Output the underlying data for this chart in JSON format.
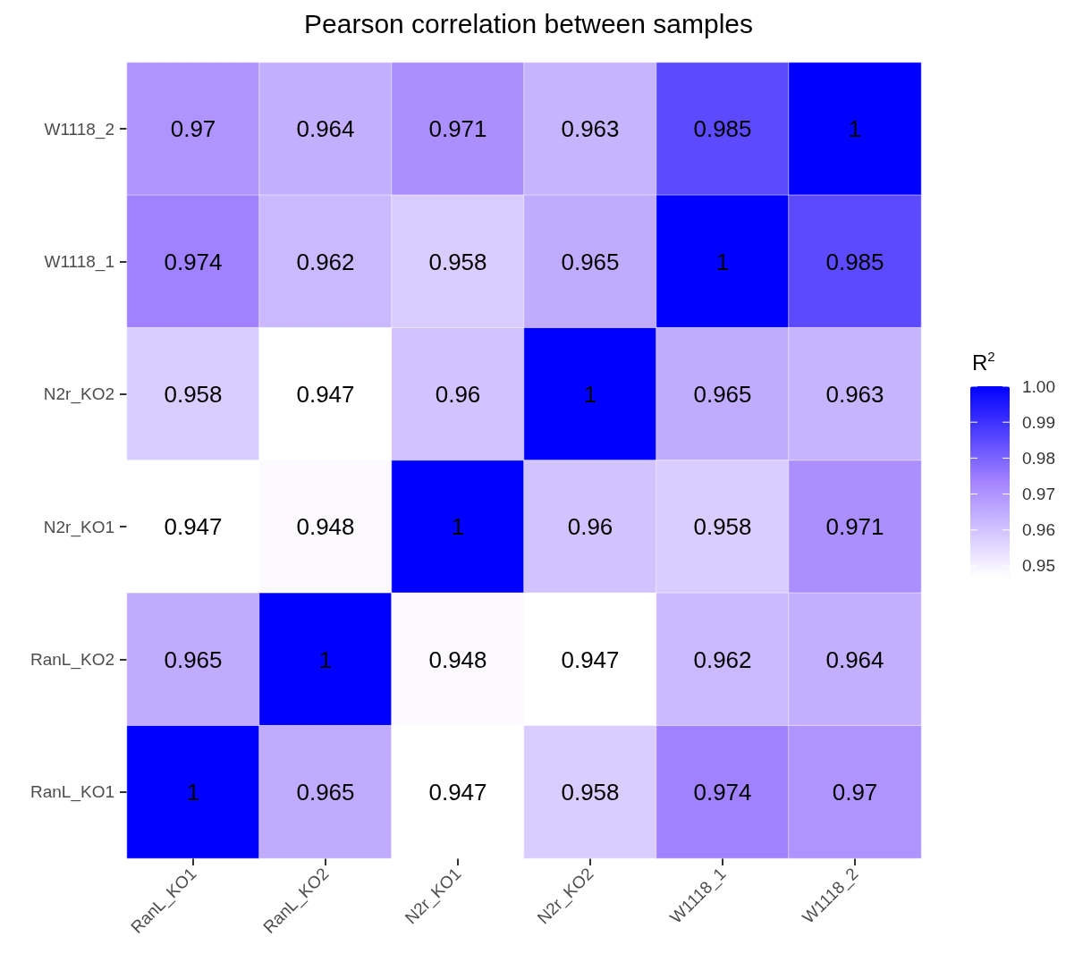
{
  "chart_data": {
    "type": "heatmap",
    "title": "Pearson correlation between samples",
    "clabel": "R$^{2}$",
    "categories": [
      "RanL_KO1",
      "RanL_KO2",
      "N2r_KO1",
      "N2r_KO2",
      "W1118_1",
      "W1118_2"
    ],
    "y_categories": [
      "W1118_2",
      "W1118_1",
      "N2r_KO2",
      "N2r_KO1",
      "RanL_KO2",
      "RanL_KO1"
    ],
    "cells": [
      [
        0.97,
        0.964,
        0.971,
        0.963,
        0.985,
        1
      ],
      [
        0.974,
        0.962,
        0.958,
        0.965,
        1,
        0.985
      ],
      [
        0.958,
        0.947,
        0.96,
        1,
        0.965,
        0.963
      ],
      [
        0.947,
        0.948,
        1,
        0.96,
        0.958,
        0.971
      ],
      [
        0.965,
        1,
        0.948,
        0.947,
        0.962,
        0.964
      ],
      [
        1,
        0.965,
        0.947,
        0.958,
        0.974,
        0.97
      ]
    ],
    "data_labels": true,
    "colors": [
      "#ffffff",
      "#a383ff",
      "#0000ff"
    ],
    "clim": [
      0.947,
      1
    ],
    "cticks": [
      0.95,
      0.96,
      0.97,
      0.98,
      0.99,
      {
        "value": 1,
        "label": "1.00"
      }
    ]
  }
}
